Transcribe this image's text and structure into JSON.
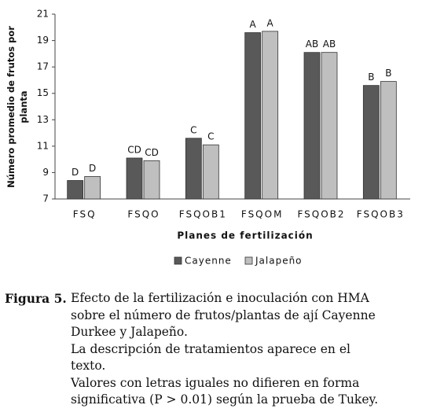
{
  "chart_data": {
    "type": "bar",
    "y_label": [
      "Número promedio de frutos por",
      "planta"
    ],
    "x_label": "Planes de fertilización",
    "categories": [
      "FSQ",
      "FSQO",
      "FSQOB1",
      "FSQOM",
      "FSQOB2",
      "FSQOB3"
    ],
    "series": [
      {
        "name": "Cayenne",
        "color": "#595959",
        "values": [
          8.4,
          10.1,
          11.6,
          19.6,
          18.1,
          15.6
        ],
        "labels": [
          "D",
          "CD",
          "C",
          "A",
          "AB",
          "B"
        ]
      },
      {
        "name": "Jalapeño",
        "color": "#bfbfbf",
        "values": [
          8.7,
          9.9,
          11.1,
          19.7,
          18.1,
          15.9
        ],
        "labels": [
          "D",
          "CD",
          "C",
          "A",
          "AB",
          "B"
        ]
      }
    ],
    "ylim": [
      7,
      21
    ],
    "yticks": [
      7,
      9,
      11,
      13,
      15,
      17,
      19,
      21
    ],
    "legend": "bottom"
  },
  "caption": {
    "label": "Figura 5.",
    "lines": [
      "Efecto de la fertilización e inoculación con HMA",
      "sobre el número de frutos/plantas de ají Cayenne",
      "Durkee y Jalapeño.",
      "La descripción de tratamientos aparece en el",
      "texto.",
      "Valores con letras iguales no difieren en forma",
      "significativa (P > 0.01) según la prueba de Tukey."
    ]
  }
}
